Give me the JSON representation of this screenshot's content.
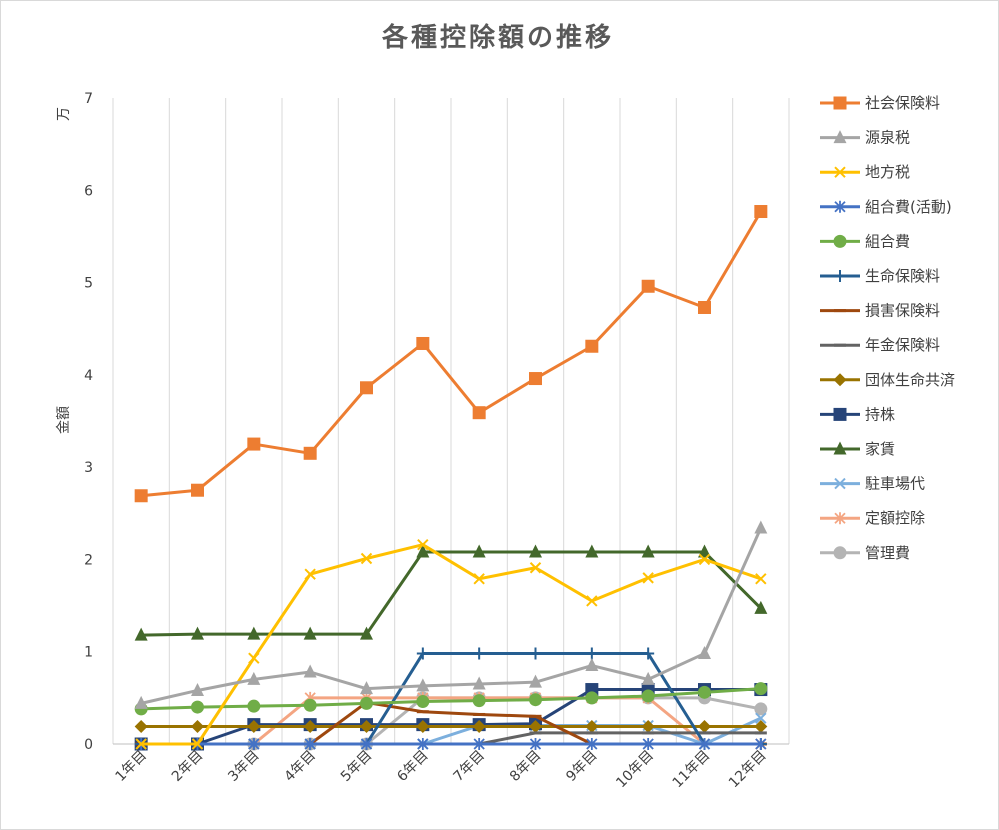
{
  "chart_data": {
    "type": "line",
    "title": "各種控除額の推移",
    "ylabel": "金額",
    "yunit": "万",
    "ylim": [
      0,
      7
    ],
    "yticks": [
      "0",
      "1",
      "2",
      "3",
      "4",
      "5",
      "6",
      "7"
    ],
    "grid": "vertical",
    "legend": "right",
    "categories": [
      "1年目",
      "2年目",
      "3年目",
      "4年目",
      "5年目",
      "6年目",
      "7年目",
      "8年目",
      "9年目",
      "10年目",
      "11年目",
      "12年目"
    ],
    "series": [
      {
        "name": "社会保険料",
        "color": "#ED7D31",
        "marker": "square",
        "values": [
          2.69,
          2.75,
          3.25,
          3.15,
          3.86,
          4.34,
          3.59,
          3.96,
          4.31,
          4.96,
          4.73,
          5.77
        ]
      },
      {
        "name": "源泉税",
        "color": "#A5A5A5",
        "marker": "triangle",
        "values": [
          0.44,
          0.58,
          0.7,
          0.78,
          0.6,
          0.63,
          0.65,
          0.67,
          0.85,
          0.7,
          0.98,
          2.34
        ]
      },
      {
        "name": "地方税",
        "color": "#FFC000",
        "marker": "x",
        "values": [
          0,
          0,
          0.93,
          1.84,
          2.01,
          2.16,
          1.79,
          1.91,
          1.55,
          1.8,
          2.0,
          1.79
        ]
      },
      {
        "name": "組合費(活動)",
        "color": "#4472C4",
        "marker": "asterisk",
        "values": [
          0,
          0,
          0,
          0,
          0,
          0,
          0,
          0,
          0,
          0,
          0,
          0
        ]
      },
      {
        "name": "組合費",
        "color": "#70AD47",
        "marker": "circle",
        "values": [
          0.38,
          0.4,
          0.41,
          0.42,
          0.44,
          0.46,
          0.47,
          0.48,
          0.5,
          0.52,
          0.56,
          0.6
        ]
      },
      {
        "name": "生命保険料",
        "color": "#255E91",
        "marker": "plus",
        "values": [
          0,
          0,
          0,
          0,
          0,
          0.98,
          0.98,
          0.98,
          0.98,
          0.98,
          0,
          0
        ]
      },
      {
        "name": "損害保険料",
        "color": "#9E480E",
        "marker": "dash",
        "values": [
          0,
          0,
          0,
          0,
          0.45,
          0.35,
          0.32,
          0.3,
          0,
          0,
          0,
          0
        ]
      },
      {
        "name": "年金保険料",
        "color": "#636363",
        "marker": "dash",
        "values": [
          0,
          0,
          0,
          0,
          0,
          0,
          0,
          0.12,
          0.12,
          0.12,
          0.12,
          0.12
        ]
      },
      {
        "name": "団体生命共済",
        "color": "#997300",
        "marker": "diamond",
        "values": [
          0.19,
          0.19,
          0.19,
          0.19,
          0.19,
          0.19,
          0.19,
          0.19,
          0.19,
          0.19,
          0.19,
          0.19
        ]
      },
      {
        "name": "持株",
        "color": "#264478",
        "marker": "square",
        "values": [
          0,
          0,
          0.21,
          0.21,
          0.21,
          0.21,
          0.21,
          0.22,
          0.59,
          0.59,
          0.59,
          0.59
        ]
      },
      {
        "name": "家賃",
        "color": "#43682B",
        "marker": "triangle",
        "values": [
          1.18,
          1.19,
          1.19,
          1.19,
          1.19,
          2.08,
          2.08,
          2.08,
          2.08,
          2.08,
          2.08,
          1.47
        ]
      },
      {
        "name": "駐車場代",
        "color": "#7CAFDD",
        "marker": "x",
        "values": [
          0,
          0,
          0,
          0,
          0,
          0,
          0.2,
          0.2,
          0.2,
          0.2,
          0,
          0.28
        ]
      },
      {
        "name": "定額控除",
        "color": "#F4A582",
        "marker": "asterisk",
        "values": [
          0,
          0,
          0,
          0.5,
          0.5,
          0.5,
          0.5,
          0.5,
          0.5,
          0.5,
          0,
          0
        ]
      },
      {
        "name": "管理費",
        "color": "#B4B4B4",
        "marker": "circle",
        "values": [
          0,
          0,
          0,
          0,
          0,
          0.5,
          0.5,
          0.5,
          0.5,
          0.5,
          0.5,
          0.38
        ]
      }
    ]
  }
}
